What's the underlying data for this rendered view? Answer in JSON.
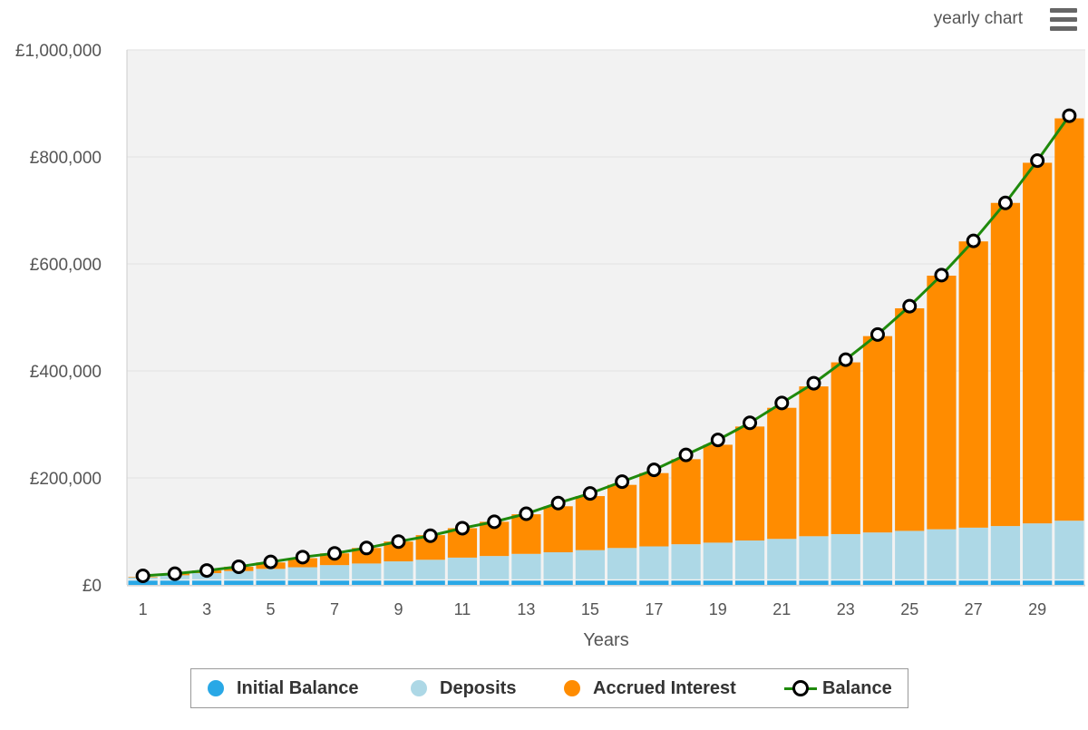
{
  "header": {
    "title": "yearly chart",
    "menu_icon": "hamburger-menu-icon"
  },
  "colors": {
    "initial": "#29a8e6",
    "deposits": "#add8e6",
    "interest": "#ff8c00",
    "balance_line": "#1f8a0c",
    "plot_bg": "#f2f2f2",
    "grid": "#e2e2e2"
  },
  "chart_data": {
    "type": "bar",
    "stacked": true,
    "xlabel": "Years",
    "ylabel": "",
    "ylim": [
      0,
      1000000
    ],
    "yticks": [
      0,
      200000,
      400000,
      600000,
      800000,
      1000000
    ],
    "ytick_labels": [
      "£0",
      "£200,000",
      "£400,000",
      "£600,000",
      "£800,000",
      "£1,000,000"
    ],
    "x": [
      1,
      2,
      3,
      4,
      5,
      6,
      7,
      8,
      9,
      10,
      11,
      12,
      13,
      14,
      15,
      16,
      17,
      18,
      19,
      20,
      21,
      22,
      23,
      24,
      25,
      26,
      27,
      28,
      29,
      30
    ],
    "xtick_labels": [
      "1",
      "3",
      "5",
      "7",
      "9",
      "11",
      "13",
      "15",
      "17",
      "19",
      "21",
      "23",
      "25",
      "27",
      "29"
    ],
    "grid": true,
    "legend_position": "bottom-center",
    "series": [
      {
        "name": "Initial Balance",
        "type": "bar",
        "values": [
          8000,
          8000,
          8000,
          8000,
          8000,
          8000,
          8000,
          8000,
          8000,
          8000,
          8000,
          8000,
          8000,
          8000,
          8000,
          8000,
          8000,
          8000,
          8000,
          8000,
          8000,
          8000,
          8000,
          8000,
          8000,
          8000,
          8000,
          8000,
          8000,
          8000
        ]
      },
      {
        "name": "Deposits",
        "type": "bar",
        "values": [
          6000,
          10000,
          14000,
          18000,
          22000,
          25000,
          29000,
          32000,
          36000,
          39000,
          43000,
          46000,
          50000,
          53000,
          57000,
          61000,
          64000,
          68000,
          71000,
          75000,
          78000,
          83000,
          87000,
          90000,
          93000,
          96000,
          99000,
          102000,
          107000,
          112000
        ]
      },
      {
        "name": "Accrued Interest",
        "type": "bar",
        "values": [
          1000,
          3000,
          5000,
          8000,
          12000,
          17000,
          22000,
          29000,
          37000,
          46000,
          55000,
          64000,
          74000,
          86000,
          101000,
          118000,
          137000,
          159000,
          183000,
          213000,
          245000,
          280000,
          321000,
          367000,
          416000,
          474000,
          535000,
          604000,
          674000,
          752000
        ]
      },
      {
        "name": "Balance",
        "type": "line",
        "values": [
          17000,
          21000,
          27000,
          34000,
          43000,
          52000,
          59000,
          69000,
          81000,
          92000,
          106000,
          118000,
          133000,
          153000,
          171000,
          193000,
          215000,
          243000,
          271000,
          303000,
          340000,
          377000,
          421000,
          468000,
          521000,
          579000,
          643000,
          714000,
          793000,
          877000
        ]
      }
    ]
  },
  "legend": {
    "items": [
      {
        "label": "Initial Balance"
      },
      {
        "label": "Deposits"
      },
      {
        "label": "Accrued Interest"
      },
      {
        "label": "Balance"
      }
    ]
  }
}
